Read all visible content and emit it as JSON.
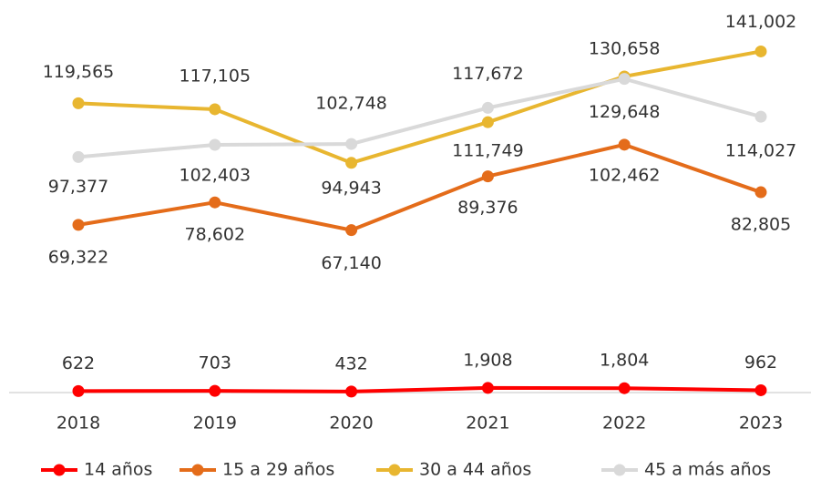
{
  "chart_data": {
    "type": "line",
    "categories": [
      "2018",
      "2019",
      "2020",
      "2021",
      "2022",
      "2023"
    ],
    "ylim": [
      0,
      160000
    ],
    "series": [
      {
        "name": "14 años",
        "color": "#ff0000",
        "values": [
          622,
          703,
          432,
          1908,
          1804,
          962
        ],
        "value_labels": [
          "622",
          "703",
          "432",
          "1,908",
          "1,804",
          "962"
        ]
      },
      {
        "name": "15 a 29 años",
        "color": "#e46c1a",
        "values": [
          69322,
          78602,
          67140,
          89376,
          102462,
          82805
        ],
        "value_labels": [
          "69,322",
          "78,602",
          "67,140",
          "89,376",
          "102,462",
          "82,805"
        ]
      },
      {
        "name": "30 a 44 años",
        "color": "#e8b630",
        "values": [
          119565,
          117105,
          94943,
          111749,
          130658,
          141002
        ],
        "value_labels": [
          "119,565",
          "117,105",
          "94,943",
          "111,749",
          "130,658",
          "141,002"
        ]
      },
      {
        "name": "45 a más años",
        "color": "#d9d9d9",
        "values": [
          97377,
          102403,
          102748,
          117672,
          129648,
          114027
        ],
        "value_labels": [
          "97,377",
          "102,403",
          "102,748",
          "117,672",
          "129,648",
          "114,027"
        ]
      }
    ],
    "legend": "bottom"
  }
}
